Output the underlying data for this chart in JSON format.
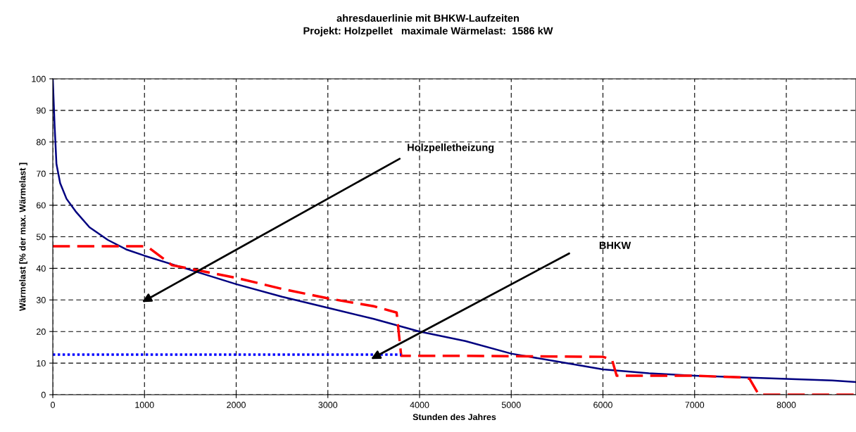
{
  "chart_data": {
    "type": "line",
    "title": "ahresdauerlinie mit BHKW-Laufzeiten",
    "subtitle": "Projekt: Holzpellet   maximale Wärmelast:  1586 kW",
    "xlabel": "Stunden des Jahres",
    "ylabel": "Wärmelast [% der max. Wärmelast ]",
    "xlim": [
      0,
      8760
    ],
    "xticks": [
      0,
      1000,
      2000,
      3000,
      4000,
      5000,
      6000,
      7000,
      8000
    ],
    "ylim": [
      0,
      100
    ],
    "yticks": [
      0,
      10,
      20,
      30,
      40,
      50,
      60,
      70,
      80,
      90,
      100
    ],
    "grid": true,
    "legend": false,
    "marker": "none",
    "series": [
      {
        "color": "#000080",
        "line_style": "solid",
        "x": [
          0,
          20,
          40,
          80,
          150,
          250,
          400,
          600,
          800,
          1000,
          1500,
          2000,
          2500,
          3000,
          3500,
          4000,
          4500,
          5000,
          5500,
          6000,
          6500,
          7000,
          7500,
          8000,
          8500,
          8760
        ],
        "values": [
          100,
          85,
          73,
          67,
          62,
          58,
          53,
          49,
          46,
          44,
          39.5,
          35,
          31,
          27.5,
          24,
          20,
          17,
          13,
          10.5,
          8,
          6.8,
          6,
          5.5,
          5,
          4.5,
          4
        ]
      },
      {
        "color": "#ff0000",
        "line_style": "dashed",
        "x": [
          0,
          1000,
          1050,
          1300,
          2000,
          2500,
          3000,
          3500,
          3750,
          3800,
          4500,
          6000,
          6100,
          6150,
          7000,
          7500,
          7600,
          7700,
          8760
        ],
        "values": [
          47,
          47,
          46.5,
          41,
          37,
          33.5,
          30.5,
          28,
          26,
          12.3,
          12.3,
          12,
          11,
          6,
          6,
          5.5,
          5,
          0,
          0
        ]
      },
      {
        "color": "#0000ff",
        "line_style": "dotted",
        "x": [
          0,
          3800
        ],
        "values": [
          12.7,
          12.7
        ]
      }
    ],
    "annotations": [
      "Holzpelletheizung",
      "BHKW"
    ]
  }
}
